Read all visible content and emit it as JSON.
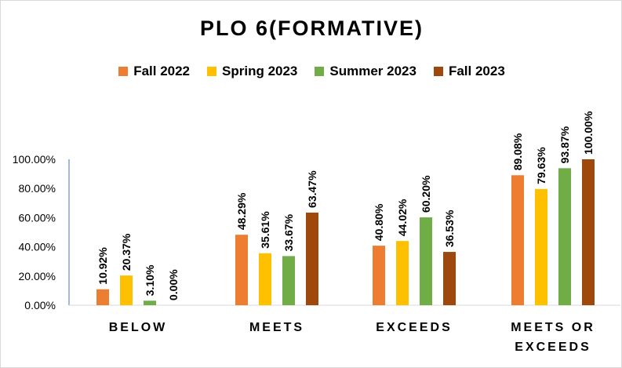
{
  "chart_data": {
    "type": "bar",
    "title": "PLO 6(FORMATIVE)",
    "categories": [
      "BELOW",
      "MEETS",
      "EXCEEDS",
      "MEETS OR EXCEEDS"
    ],
    "category_lines": [
      [
        "BELOW"
      ],
      [
        "MEETS"
      ],
      [
        "EXCEEDS"
      ],
      [
        "MEETS OR",
        "EXCEEDS"
      ]
    ],
    "series": [
      {
        "name": "Fall 2022",
        "color": "#ED7D31",
        "values": [
          10.92,
          48.29,
          40.8,
          89.08
        ],
        "labels": [
          "10.92%",
          "48.29%",
          "40.80%",
          "89.08%"
        ]
      },
      {
        "name": "Spring 2023",
        "color": "#FFC000",
        "values": [
          20.37,
          35.61,
          44.02,
          79.63
        ],
        "labels": [
          "20.37%",
          "35.61%",
          "44.02%",
          "79.63%"
        ]
      },
      {
        "name": "Summer 2023",
        "color": "#70AD47",
        "values": [
          3.1,
          33.67,
          60.2,
          93.87
        ],
        "labels": [
          "3.10%",
          "33.67%",
          "60.20%",
          "93.87%"
        ]
      },
      {
        "name": "Fall 2023",
        "color": "#9E480E",
        "values": [
          0.0,
          63.47,
          36.53,
          100.0
        ],
        "labels": [
          "0.00%",
          "63.47%",
          "36.53%",
          "100.00%"
        ]
      }
    ],
    "yticks": [
      "0.00%",
      "20.00%",
      "40.00%",
      "60.00%",
      "80.00%",
      "100.00%"
    ],
    "ylim": [
      0,
      100
    ],
    "legend_position": "top",
    "grid": false
  }
}
